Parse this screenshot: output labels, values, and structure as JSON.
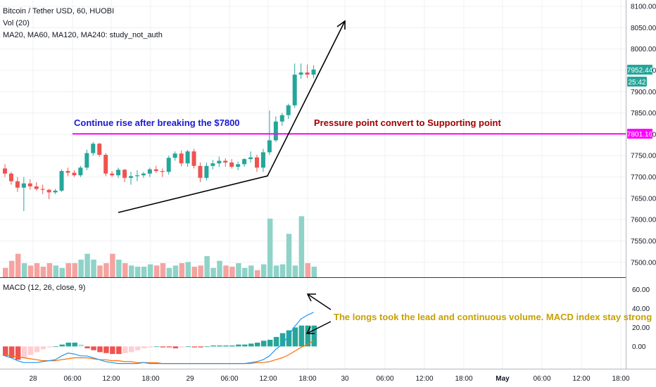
{
  "header": {
    "symbol_line": "Bitcoin / Tether USD, 60, HUOBI",
    "volume_line": "Vol (20)",
    "ma_line": "MA20, MA60, MA120, MA240: study_not_auth"
  },
  "macd_header": "MACD (12, 26, close, 9)",
  "annotations": {
    "breakout_text": "Continue rise after breaking the $7800",
    "pressure_text": "Pressure point convert to Supporting point",
    "macd_text": "The longs took the lead and continuous volume. MACD index stay strong"
  },
  "price_labels": {
    "last_price": "7952.44",
    "countdown": "25:42",
    "level": "7801.16"
  },
  "price_axis": [
    "8100.00",
    "8050.00",
    "8000.00",
    "7950.00",
    "7900.00",
    "7850.00",
    "7800.00",
    "7750.00",
    "7700.00",
    "7650.00",
    "7600.00",
    "7550.00",
    "7500.00"
  ],
  "macd_axis": [
    "60.00",
    "40.00",
    "20.00",
    "0.00"
  ],
  "time_axis": [
    "28",
    "06:00",
    "12:00",
    "18:00",
    "29",
    "06:00",
    "12:00",
    "18:00",
    "30",
    "06:00",
    "12:00",
    "18:00",
    "May",
    "06:00",
    "12:00",
    "18:00"
  ],
  "colors": {
    "up": "#26a69a",
    "down": "#ef5350",
    "up_volume": "#8fd3c8",
    "down_volume": "#f4a3a1",
    "level_line": "#ff00ff",
    "breakout_text": "#1a1ad6",
    "pressure_text": "#a00000",
    "macd_text": "#c8a000",
    "macd_line": "#2196f3",
    "signal_line": "#ff6d00"
  },
  "chart_data": {
    "type": "candlestick",
    "price_range": [
      7465,
      8115
    ],
    "resistance_level": 7801.16,
    "candles": [
      {
        "o": 7720,
        "h": 7730,
        "l": 7700,
        "c": 7708
      },
      {
        "o": 7708,
        "h": 7712,
        "l": 7682,
        "c": 7690
      },
      {
        "o": 7690,
        "h": 7700,
        "l": 7665,
        "c": 7675
      },
      {
        "o": 7675,
        "h": 7700,
        "l": 7620,
        "c": 7685
      },
      {
        "o": 7685,
        "h": 7695,
        "l": 7670,
        "c": 7678
      },
      {
        "o": 7678,
        "h": 7688,
        "l": 7668,
        "c": 7672
      },
      {
        "o": 7672,
        "h": 7682,
        "l": 7660,
        "c": 7670
      },
      {
        "o": 7670,
        "h": 7672,
        "l": 7648,
        "c": 7664
      },
      {
        "o": 7664,
        "h": 7672,
        "l": 7660,
        "c": 7668
      },
      {
        "o": 7668,
        "h": 7718,
        "l": 7665,
        "c": 7714
      },
      {
        "o": 7714,
        "h": 7722,
        "l": 7702,
        "c": 7710
      },
      {
        "o": 7710,
        "h": 7716,
        "l": 7700,
        "c": 7704
      },
      {
        "o": 7704,
        "h": 7726,
        "l": 7700,
        "c": 7722
      },
      {
        "o": 7722,
        "h": 7764,
        "l": 7716,
        "c": 7756
      },
      {
        "o": 7756,
        "h": 7782,
        "l": 7750,
        "c": 7778
      },
      {
        "o": 7778,
        "h": 7780,
        "l": 7748,
        "c": 7752
      },
      {
        "o": 7752,
        "h": 7756,
        "l": 7702,
        "c": 7708
      },
      {
        "o": 7708,
        "h": 7714,
        "l": 7700,
        "c": 7704
      },
      {
        "o": 7704,
        "h": 7722,
        "l": 7698,
        "c": 7717
      },
      {
        "o": 7717,
        "h": 7719,
        "l": 7688,
        "c": 7698
      },
      {
        "o": 7698,
        "h": 7712,
        "l": 7682,
        "c": 7702
      },
      {
        "o": 7702,
        "h": 7716,
        "l": 7690,
        "c": 7704
      },
      {
        "o": 7704,
        "h": 7712,
        "l": 7698,
        "c": 7708
      },
      {
        "o": 7708,
        "h": 7722,
        "l": 7700,
        "c": 7718
      },
      {
        "o": 7718,
        "h": 7726,
        "l": 7710,
        "c": 7714
      },
      {
        "o": 7714,
        "h": 7720,
        "l": 7700,
        "c": 7712
      },
      {
        "o": 7712,
        "h": 7750,
        "l": 7706,
        "c": 7745
      },
      {
        "o": 7745,
        "h": 7760,
        "l": 7738,
        "c": 7755
      },
      {
        "o": 7755,
        "h": 7762,
        "l": 7725,
        "c": 7732
      },
      {
        "o": 7732,
        "h": 7764,
        "l": 7724,
        "c": 7760
      },
      {
        "o": 7760,
        "h": 7766,
        "l": 7720,
        "c": 7726
      },
      {
        "o": 7726,
        "h": 7734,
        "l": 7688,
        "c": 7698
      },
      {
        "o": 7698,
        "h": 7734,
        "l": 7692,
        "c": 7726
      },
      {
        "o": 7726,
        "h": 7740,
        "l": 7718,
        "c": 7732
      },
      {
        "o": 7732,
        "h": 7748,
        "l": 7724,
        "c": 7738
      },
      {
        "o": 7738,
        "h": 7744,
        "l": 7724,
        "c": 7734
      },
      {
        "o": 7734,
        "h": 7742,
        "l": 7720,
        "c": 7724
      },
      {
        "o": 7724,
        "h": 7736,
        "l": 7716,
        "c": 7730
      },
      {
        "o": 7730,
        "h": 7744,
        "l": 7724,
        "c": 7742
      },
      {
        "o": 7742,
        "h": 7760,
        "l": 7734,
        "c": 7746
      },
      {
        "o": 7746,
        "h": 7752,
        "l": 7712,
        "c": 7722
      },
      {
        "o": 7722,
        "h": 7766,
        "l": 7712,
        "c": 7758
      },
      {
        "o": 7758,
        "h": 7856,
        "l": 7752,
        "c": 7786
      },
      {
        "o": 7786,
        "h": 7842,
        "l": 7782,
        "c": 7830
      },
      {
        "o": 7830,
        "h": 7850,
        "l": 7820,
        "c": 7845
      },
      {
        "o": 7845,
        "h": 7872,
        "l": 7836,
        "c": 7868
      },
      {
        "o": 7868,
        "h": 7966,
        "l": 7862,
        "c": 7940
      },
      {
        "o": 7940,
        "h": 7966,
        "l": 7930,
        "c": 7945
      },
      {
        "o": 7945,
        "h": 7964,
        "l": 7932,
        "c": 7940
      },
      {
        "o": 7940,
        "h": 7962,
        "l": 7932,
        "c": 7952
      }
    ],
    "volume": [
      8,
      14,
      20,
      12,
      10,
      12,
      9,
      12,
      10,
      8,
      12,
      12,
      15,
      20,
      15,
      10,
      12,
      20,
      15,
      12,
      10,
      9,
      9,
      11,
      10,
      12,
      8,
      10,
      12,
      13,
      9,
      10,
      18,
      8,
      14,
      10,
      9,
      12,
      8,
      10,
      6,
      11,
      50,
      10,
      11,
      37,
      10,
      52,
      12,
      9
    ],
    "volume_max": 60,
    "macd_range": [
      -22,
      70
    ],
    "macd_line": [
      -10,
      -12,
      -15,
      -17,
      -17,
      -17,
      -16,
      -15,
      -14,
      -10,
      -7,
      -8,
      -10,
      -10,
      -12,
      -14,
      -16,
      -17,
      -18,
      -18,
      -18,
      -18,
      -17,
      -18,
      -18,
      -18,
      -18,
      -18,
      -18,
      -18,
      -18,
      -18,
      -18,
      -18,
      -18,
      -18,
      -18,
      -18,
      -18,
      -17,
      -16,
      -14,
      -10,
      -3,
      2,
      11,
      21,
      29,
      33,
      36
    ],
    "signal_line": [
      -8,
      -10,
      -11,
      -12,
      -13,
      -14,
      -15,
      -15,
      -15,
      -14,
      -13,
      -12,
      -12,
      -12,
      -13,
      -14,
      -14,
      -15,
      -15,
      -16,
      -16,
      -17,
      -17,
      -17,
      -17,
      -18,
      -18,
      -18,
      -18,
      -18,
      -18,
      -18,
      -18,
      -18,
      -18,
      -18,
      -18,
      -18,
      -18,
      -18,
      -17,
      -17,
      -16,
      -14,
      -12,
      -9,
      -5,
      -1,
      2,
      6
    ],
    "histogram": [
      -10,
      -12,
      -14,
      -12,
      -9,
      -6,
      -3,
      -1,
      0,
      2,
      4,
      4,
      2,
      -2,
      -4,
      -6,
      -7,
      -8,
      -8,
      -7,
      -6,
      -4,
      -2,
      -1,
      0,
      -1,
      -1,
      -2,
      -1,
      0,
      -1,
      -1,
      0,
      1,
      1,
      1,
      1,
      2,
      2,
      3,
      4,
      6,
      7,
      10,
      14,
      17,
      20,
      22,
      22,
      22
    ]
  }
}
